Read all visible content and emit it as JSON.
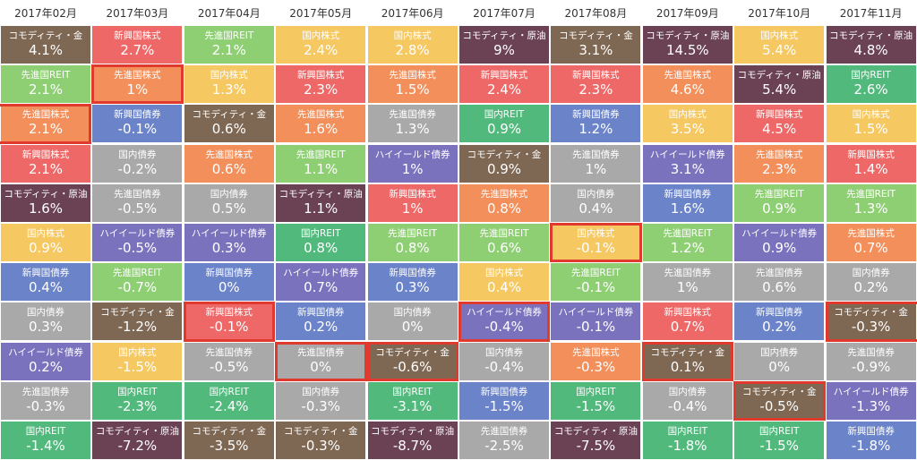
{
  "chart_data": {
    "type": "table",
    "title": "",
    "columns": [
      "2017年02月",
      "2017年03月",
      "2017年04月",
      "2017年05月",
      "2017年06月",
      "2017年07月",
      "2017年08月",
      "2017年09月",
      "2017年10月",
      "2017年11月"
    ],
    "colors": {
      "コモディティ・金": "#7e6753",
      "コモディティ・原油": "#6b4254",
      "先進国REIT": "#8fcf74",
      "新興国株式": "#ee6868",
      "先進国株式": "#f28f5b",
      "国内株式": "#f5c862",
      "国内REIT": "#52b97c",
      "新興国債券": "#6b84c9",
      "国内債券": "#a9a9a9",
      "先進国債券": "#a9a9a9",
      "ハイイールド債券": "#7b72bd"
    },
    "highlight_rank": [
      2,
      1,
      7,
      8,
      8,
      7,
      5,
      8,
      9,
      7
    ],
    "ranking": [
      [
        {
          "asset": "コモディティ・金",
          "return": "4.1%"
        },
        {
          "asset": "先進国REIT",
          "return": "2.1%"
        },
        {
          "asset": "先進国株式",
          "return": "2.1%"
        },
        {
          "asset": "新興国株式",
          "return": "2.1%"
        },
        {
          "asset": "コモディティ・原油",
          "return": "1.6%"
        },
        {
          "asset": "国内株式",
          "return": "0.9%"
        },
        {
          "asset": "新興国債券",
          "return": "0.4%"
        },
        {
          "asset": "国内債券",
          "return": "0.3%"
        },
        {
          "asset": "ハイイールド債券",
          "return": "0.2%"
        },
        {
          "asset": "先進国債券",
          "return": "-0.3%"
        },
        {
          "asset": "国内REIT",
          "return": "-1.4%"
        }
      ],
      [
        {
          "asset": "新興国株式",
          "return": "2.7%"
        },
        {
          "asset": "先進国株式",
          "return": "1%"
        },
        {
          "asset": "新興国債券",
          "return": "-0.1%"
        },
        {
          "asset": "国内債券",
          "return": "-0.2%"
        },
        {
          "asset": "先進国債券",
          "return": "-0.5%"
        },
        {
          "asset": "ハイイールド債券",
          "return": "-0.5%"
        },
        {
          "asset": "先進国REIT",
          "return": "-0.7%"
        },
        {
          "asset": "コモディティ・金",
          "return": "-1.2%"
        },
        {
          "asset": "国内株式",
          "return": "-1.5%"
        },
        {
          "asset": "国内REIT",
          "return": "-2.3%"
        },
        {
          "asset": "コモディティ・原油",
          "return": "-7.2%"
        }
      ],
      [
        {
          "asset": "先進国REIT",
          "return": "2.1%"
        },
        {
          "asset": "国内株式",
          "return": "1.3%"
        },
        {
          "asset": "コモディティ・金",
          "return": "0.6%"
        },
        {
          "asset": "先進国株式",
          "return": "0.6%"
        },
        {
          "asset": "国内債券",
          "return": "0.5%"
        },
        {
          "asset": "ハイイールド債券",
          "return": "0.3%"
        },
        {
          "asset": "新興国債券",
          "return": "0%"
        },
        {
          "asset": "新興国株式",
          "return": "-0.1%"
        },
        {
          "asset": "先進国債券",
          "return": "-0.5%"
        },
        {
          "asset": "国内REIT",
          "return": "-2.4%"
        },
        {
          "asset": "コモディティ・金",
          "return": "-3.5%"
        }
      ],
      [
        {
          "asset": "国内株式",
          "return": "2.4%"
        },
        {
          "asset": "新興国株式",
          "return": "2.3%"
        },
        {
          "asset": "先進国株式",
          "return": "1.6%"
        },
        {
          "asset": "先進国REIT",
          "return": "1.1%"
        },
        {
          "asset": "コモディティ・原油",
          "return": "1.1%"
        },
        {
          "asset": "国内REIT",
          "return": "0.8%"
        },
        {
          "asset": "ハイイールド債券",
          "return": "0.7%"
        },
        {
          "asset": "新興国債券",
          "return": "0.2%"
        },
        {
          "asset": "先進国債券",
          "return": "0%"
        },
        {
          "asset": "国内債券",
          "return": "-0.3%"
        },
        {
          "asset": "コモディティ・金",
          "return": "-0.3%"
        }
      ],
      [
        {
          "asset": "国内株式",
          "return": "2.8%"
        },
        {
          "asset": "先進国株式",
          "return": "1.5%"
        },
        {
          "asset": "先進国債券",
          "return": "1.3%"
        },
        {
          "asset": "ハイイールド債券",
          "return": "1%"
        },
        {
          "asset": "新興国株式",
          "return": "1%"
        },
        {
          "asset": "先進国REIT",
          "return": "0.8%"
        },
        {
          "asset": "新興国債券",
          "return": "0.3%"
        },
        {
          "asset": "国内債券",
          "return": "0%"
        },
        {
          "asset": "コモディティ・金",
          "return": "-0.6%"
        },
        {
          "asset": "国内REIT",
          "return": "-3.1%"
        },
        {
          "asset": "コモディティ・原油",
          "return": "-8.7%"
        }
      ],
      [
        {
          "asset": "コモディティ・原油",
          "return": "9%"
        },
        {
          "asset": "新興国株式",
          "return": "2.4%"
        },
        {
          "asset": "国内REIT",
          "return": "0.9%"
        },
        {
          "asset": "コモディティ・金",
          "return": "0.9%"
        },
        {
          "asset": "先進国株式",
          "return": "0.8%"
        },
        {
          "asset": "先進国REIT",
          "return": "0.6%"
        },
        {
          "asset": "国内株式",
          "return": "0.4%"
        },
        {
          "asset": "ハイイールド債券",
          "return": "-0.4%"
        },
        {
          "asset": "国内債券",
          "return": "-0.4%"
        },
        {
          "asset": "新興国債券",
          "return": "-1.5%"
        },
        {
          "asset": "先進国債券",
          "return": "-2.5%"
        }
      ],
      [
        {
          "asset": "コモディティ・金",
          "return": "3.1%"
        },
        {
          "asset": "新興国株式",
          "return": "2.3%"
        },
        {
          "asset": "新興国債券",
          "return": "1.2%"
        },
        {
          "asset": "先進国債券",
          "return": "1%"
        },
        {
          "asset": "国内債券",
          "return": "0.4%"
        },
        {
          "asset": "国内株式",
          "return": "-0.1%"
        },
        {
          "asset": "先進国REIT",
          "return": "-0.1%"
        },
        {
          "asset": "ハイイールド債券",
          "return": "-0.1%"
        },
        {
          "asset": "先進国株式",
          "return": "-0.3%"
        },
        {
          "asset": "国内REIT",
          "return": "-1.5%"
        },
        {
          "asset": "コモディティ・原油",
          "return": "-7.5%"
        }
      ],
      [
        {
          "asset": "コモディティ・原油",
          "return": "14.5%"
        },
        {
          "asset": "先進国株式",
          "return": "4.6%"
        },
        {
          "asset": "国内株式",
          "return": "3.5%"
        },
        {
          "asset": "ハイイールド債券",
          "return": "3.1%"
        },
        {
          "asset": "新興国債券",
          "return": "1.6%"
        },
        {
          "asset": "先進国REIT",
          "return": "1.2%"
        },
        {
          "asset": "先進国債券",
          "return": "1%"
        },
        {
          "asset": "新興国株式",
          "return": "0.7%"
        },
        {
          "asset": "コモディティ・金",
          "return": "0.1%"
        },
        {
          "asset": "国内債券",
          "return": "-0.4%"
        },
        {
          "asset": "国内REIT",
          "return": "-1.8%"
        }
      ],
      [
        {
          "asset": "国内株式",
          "return": "5.4%"
        },
        {
          "asset": "コモディティ・原油",
          "return": "5.4%"
        },
        {
          "asset": "新興国株式",
          "return": "4.5%"
        },
        {
          "asset": "先進国株式",
          "return": "2.3%"
        },
        {
          "asset": "先進国REIT",
          "return": "0.9%"
        },
        {
          "asset": "ハイイールド債券",
          "return": "0.9%"
        },
        {
          "asset": "先進国債券",
          "return": "0.6%"
        },
        {
          "asset": "新興国債券",
          "return": "0.2%"
        },
        {
          "asset": "国内債券",
          "return": "0%"
        },
        {
          "asset": "コモディティ・金",
          "return": "-0.5%"
        },
        {
          "asset": "国内REIT",
          "return": "-1.5%"
        }
      ],
      [
        {
          "asset": "コモディティ・原油",
          "return": "4.8%"
        },
        {
          "asset": "国内REIT",
          "return": "2.6%"
        },
        {
          "asset": "国内株式",
          "return": "1.5%"
        },
        {
          "asset": "新興国株式",
          "return": "1.4%"
        },
        {
          "asset": "先進国REIT",
          "return": "1.3%"
        },
        {
          "asset": "先進国株式",
          "return": "0.7%"
        },
        {
          "asset": "国内債券",
          "return": "0.2%"
        },
        {
          "asset": "コモディティ・金",
          "return": "-0.3%"
        },
        {
          "asset": "先進国債券",
          "return": "-0.9%"
        },
        {
          "asset": "ハイイールド債券",
          "return": "-1.3%"
        },
        {
          "asset": "新興国債券",
          "return": "-1.8%"
        }
      ]
    ]
  }
}
